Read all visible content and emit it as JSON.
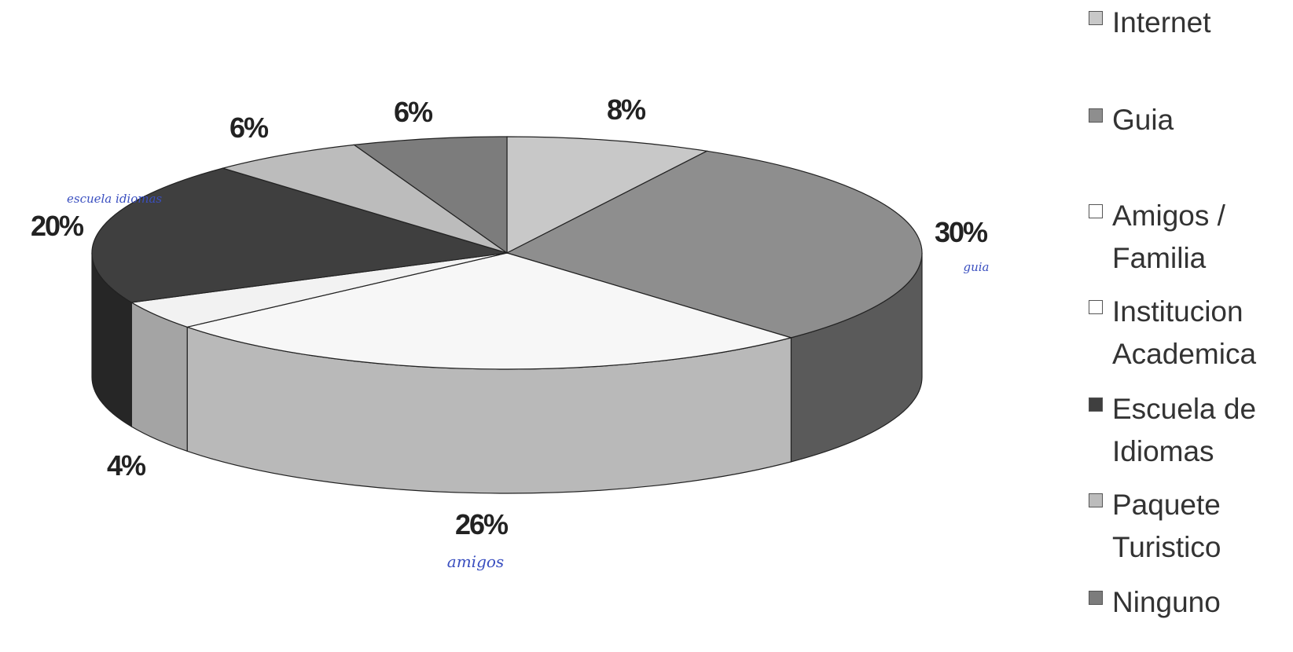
{
  "chart_data": {
    "type": "pie",
    "categories": [
      "Internet",
      "Guia",
      "Amigos / Familia",
      "Institucion Academica",
      "Escuela de Idiomas",
      "Paquete Turistico",
      "Ninguno"
    ],
    "values": [
      8,
      30,
      26,
      4,
      20,
      6,
      6
    ],
    "data_labels": [
      "8%",
      "30%",
      "26%",
      "4%",
      "20%",
      "6%",
      "6%"
    ],
    "colors": [
      "#c8c8c8",
      "#8e8e8e",
      "#f7f7f7",
      "#f2f2f2",
      "#3f3f3f",
      "#bcbcbc",
      "#7c7c7c"
    ],
    "side_colors": [
      "#a8a8a8",
      "#5a5a5a",
      "#b9b9b9",
      "#a4a4a4",
      "#262626",
      "#9c9c9c",
      "#555555"
    ],
    "legend_position": "right",
    "annotations": [
      "escuela idiomas",
      "guia",
      "amigos"
    ]
  },
  "legend": {
    "items": [
      {
        "label": "Internet",
        "color": "#c8c8c8"
      },
      {
        "label": "Guia",
        "color": "#8e8e8e"
      },
      {
        "label": "Amigos / Familia",
        "color": "#ffffff"
      },
      {
        "label": "Institucion Academica",
        "color": "#ffffff"
      },
      {
        "label": "Escuela de Idiomas",
        "color": "#3f3f3f"
      },
      {
        "label": "Paquete Turistico",
        "color": "#bcbcbc"
      },
      {
        "label": "Ninguno",
        "color": "#7c7c7c"
      }
    ]
  }
}
